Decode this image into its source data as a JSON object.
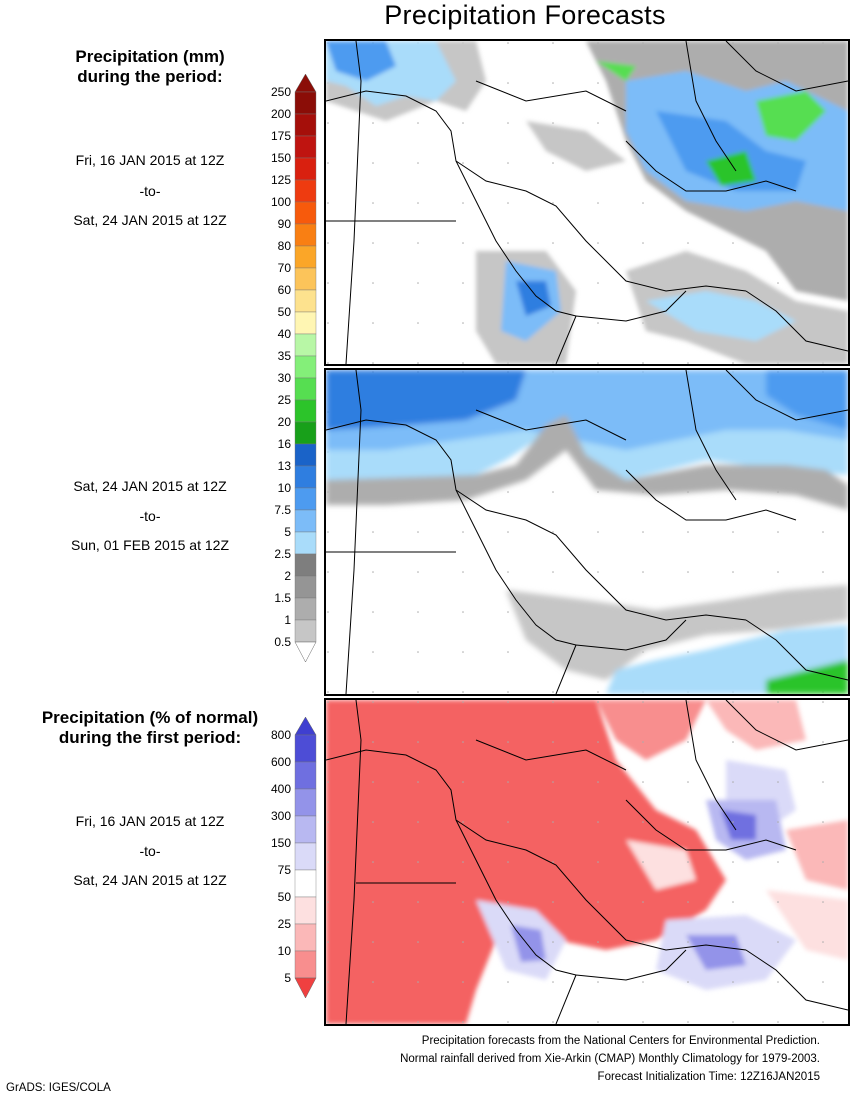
{
  "title": "Precipitation Forecasts",
  "left": {
    "heading_mm_line1": "Precipitation (mm)",
    "heading_mm_line2": "during the period:",
    "period1": {
      "from": "Fri, 16 JAN 2015 at 12Z",
      "sep": "-to-",
      "to": "Sat, 24 JAN 2015 at 12Z"
    },
    "period2": {
      "from": "Sat, 24 JAN 2015 at 12Z",
      "sep": "-to-",
      "to": "Sun, 01 FEB 2015 at 12Z"
    },
    "heading_pct_line1": "Precipitation (% of normal)",
    "heading_pct_line2": "during the first period:",
    "period3": {
      "from": "Fri, 16 JAN 2015 at 12Z",
      "sep": "-to-",
      "to": "Sat, 24 JAN 2015 at 12Z"
    }
  },
  "legend_mm": {
    "labels": [
      "250",
      "200",
      "175",
      "150",
      "125",
      "100",
      "90",
      "80",
      "70",
      "60",
      "50",
      "40",
      "35",
      "30",
      "25",
      "20",
      "16",
      "13",
      "10",
      "7.5",
      "5",
      "2.5",
      "2",
      "1.5",
      "1",
      "0.5"
    ],
    "colors": [
      "#8b0d07",
      "#a50f0a",
      "#bf1410",
      "#d9200f",
      "#ee3b10",
      "#f75a0c",
      "#f97f13",
      "#fba628",
      "#fcc45a",
      "#fde28e",
      "#fff6b3",
      "#b8f7a6",
      "#84ef79",
      "#56de51",
      "#2cc42a",
      "#18a01a",
      "#1a63c8",
      "#2f7ee0",
      "#4d9bf0",
      "#7cbcf8",
      "#a9dcfa",
      "#7e7e7e",
      "#959595",
      "#adadad",
      "#c6c6c6",
      "#ffffff"
    ]
  },
  "legend_pct": {
    "labels": [
      "800",
      "600",
      "400",
      "300",
      "150",
      "75",
      "50",
      "25",
      "10",
      "5"
    ],
    "colors": [
      "#4d4dd6",
      "#6f6fe0",
      "#9393e9",
      "#b8b8f1",
      "#dadaf8",
      "#ffffff",
      "#fde0e0",
      "#fbb8b8",
      "#f88e8e",
      "#f46262"
    ],
    "top_arrow_color": "#3f3fd0",
    "bottom_arrow_color": "#f04040"
  },
  "credits": {
    "line1": "Precipitation forecasts from the National Centers for Environmental Prediction.",
    "line2": "Normal rainfall derived from Xie-Arkin (CMAP) Monthly Climatology for 1979-2003.",
    "line3": "Forecast Initialization Time: 12Z16JAN2015"
  },
  "footer": "GrADS: IGES/COLA"
}
